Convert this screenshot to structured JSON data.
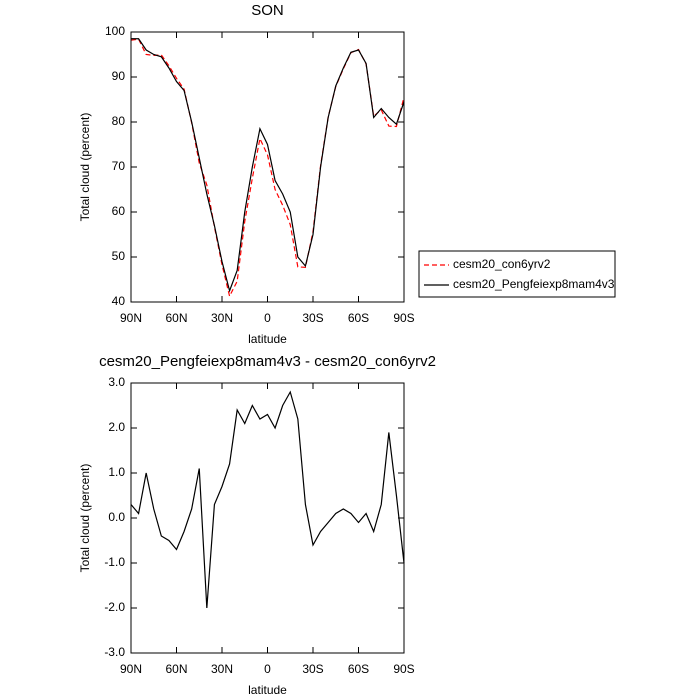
{
  "chart_data": [
    {
      "type": "line",
      "title": "SON",
      "x_label": "latitude",
      "y_label": "Total cloud (percent)",
      "x": [
        90,
        85,
        80,
        75,
        70,
        65,
        60,
        55,
        50,
        45,
        40,
        35,
        30,
        25,
        20,
        15,
        10,
        5,
        0,
        -5,
        -10,
        -15,
        -20,
        -25,
        -30,
        -35,
        -40,
        -45,
        -50,
        -55,
        -60,
        -65,
        -70,
        -75,
        -80,
        -85,
        -90
      ],
      "xlim": [
        90,
        -90
      ],
      "xticks": [
        {
          "value": 90,
          "label": "90N"
        },
        {
          "value": 60,
          "label": "60N"
        },
        {
          "value": 30,
          "label": "30N"
        },
        {
          "value": 0,
          "label": "0"
        },
        {
          "value": -30,
          "label": "30S"
        },
        {
          "value": -60,
          "label": "60S"
        },
        {
          "value": -90,
          "label": "90S"
        }
      ],
      "ylim": [
        40,
        100
      ],
      "yticks": [
        40,
        50,
        60,
        70,
        80,
        90,
        100
      ],
      "legend": "right",
      "series": [
        {
          "name": "cesm20_con6yrv2",
          "color": "#ff0000",
          "line_style": "dashed",
          "values": [
            98.2,
            98.4,
            95,
            94.8,
            94.9,
            92.5,
            89.7,
            87.3,
            79.8,
            70.9,
            66,
            56.7,
            48.3,
            41.3,
            44.6,
            57.9,
            67.5,
            76.3,
            72.7,
            65,
            61.5,
            57.2,
            47.8,
            47.7,
            55.6,
            70.3,
            81.1,
            87.9,
            91.8,
            95.4,
            96.1,
            92.9,
            81.3,
            82.7,
            79.1,
            79,
            85.5
          ]
        },
        {
          "name": "cesm20_Pengfeiexp8mam4v3",
          "color": "#000000",
          "line_style": "solid",
          "values": [
            98.5,
            98.5,
            96,
            95,
            94.5,
            92,
            89,
            87,
            80,
            72,
            64,
            57,
            49,
            42.5,
            47,
            60,
            70,
            78.5,
            75,
            67,
            64,
            60,
            50,
            48,
            55,
            70,
            81,
            88,
            92,
            95.5,
            96,
            93,
            81,
            83,
            81,
            79.5,
            84.5
          ]
        }
      ]
    },
    {
      "type": "line",
      "title": "cesm20_Pengfeiexp8mam4v3 - cesm20_con6yrv2",
      "x_label": "latitude",
      "y_label": "Total cloud (percent)",
      "x": [
        90,
        85,
        80,
        75,
        70,
        65,
        60,
        55,
        50,
        45,
        40,
        35,
        30,
        25,
        20,
        15,
        10,
        5,
        0,
        -5,
        -10,
        -15,
        -20,
        -25,
        -30,
        -35,
        -40,
        -45,
        -50,
        -55,
        -60,
        -65,
        -70,
        -75,
        -80,
        -85,
        -90
      ],
      "xlim": [
        90,
        -90
      ],
      "xticks": [
        {
          "value": 90,
          "label": "90N"
        },
        {
          "value": 60,
          "label": "60N"
        },
        {
          "value": 30,
          "label": "30N"
        },
        {
          "value": 0,
          "label": "0"
        },
        {
          "value": -30,
          "label": "30S"
        },
        {
          "value": -60,
          "label": "60S"
        },
        {
          "value": -90,
          "label": "90S"
        }
      ],
      "ylim": [
        -3,
        3
      ],
      "yticks": [
        {
          "value": -3,
          "label": "-3.0"
        },
        {
          "value": -2,
          "label": "-2.0"
        },
        {
          "value": -1,
          "label": "-1.0"
        },
        {
          "value": 0,
          "label": "0.0"
        },
        {
          "value": 1,
          "label": "1.0"
        },
        {
          "value": 2,
          "label": "2.0"
        },
        {
          "value": 3,
          "label": "3.0"
        }
      ],
      "color": "#000000",
      "values": [
        0.3,
        0.1,
        1.0,
        0.2,
        -0.4,
        -0.5,
        -0.7,
        -0.3,
        0.2,
        1.1,
        -2.0,
        0.3,
        0.7,
        1.2,
        2.4,
        2.1,
        2.5,
        2.2,
        2.3,
        2.0,
        2.5,
        2.8,
        2.2,
        0.3,
        -0.6,
        -0.3,
        -0.1,
        0.1,
        0.2,
        0.1,
        -0.1,
        0.1,
        -0.3,
        0.3,
        1.9,
        0.5,
        -1.0
      ]
    }
  ]
}
